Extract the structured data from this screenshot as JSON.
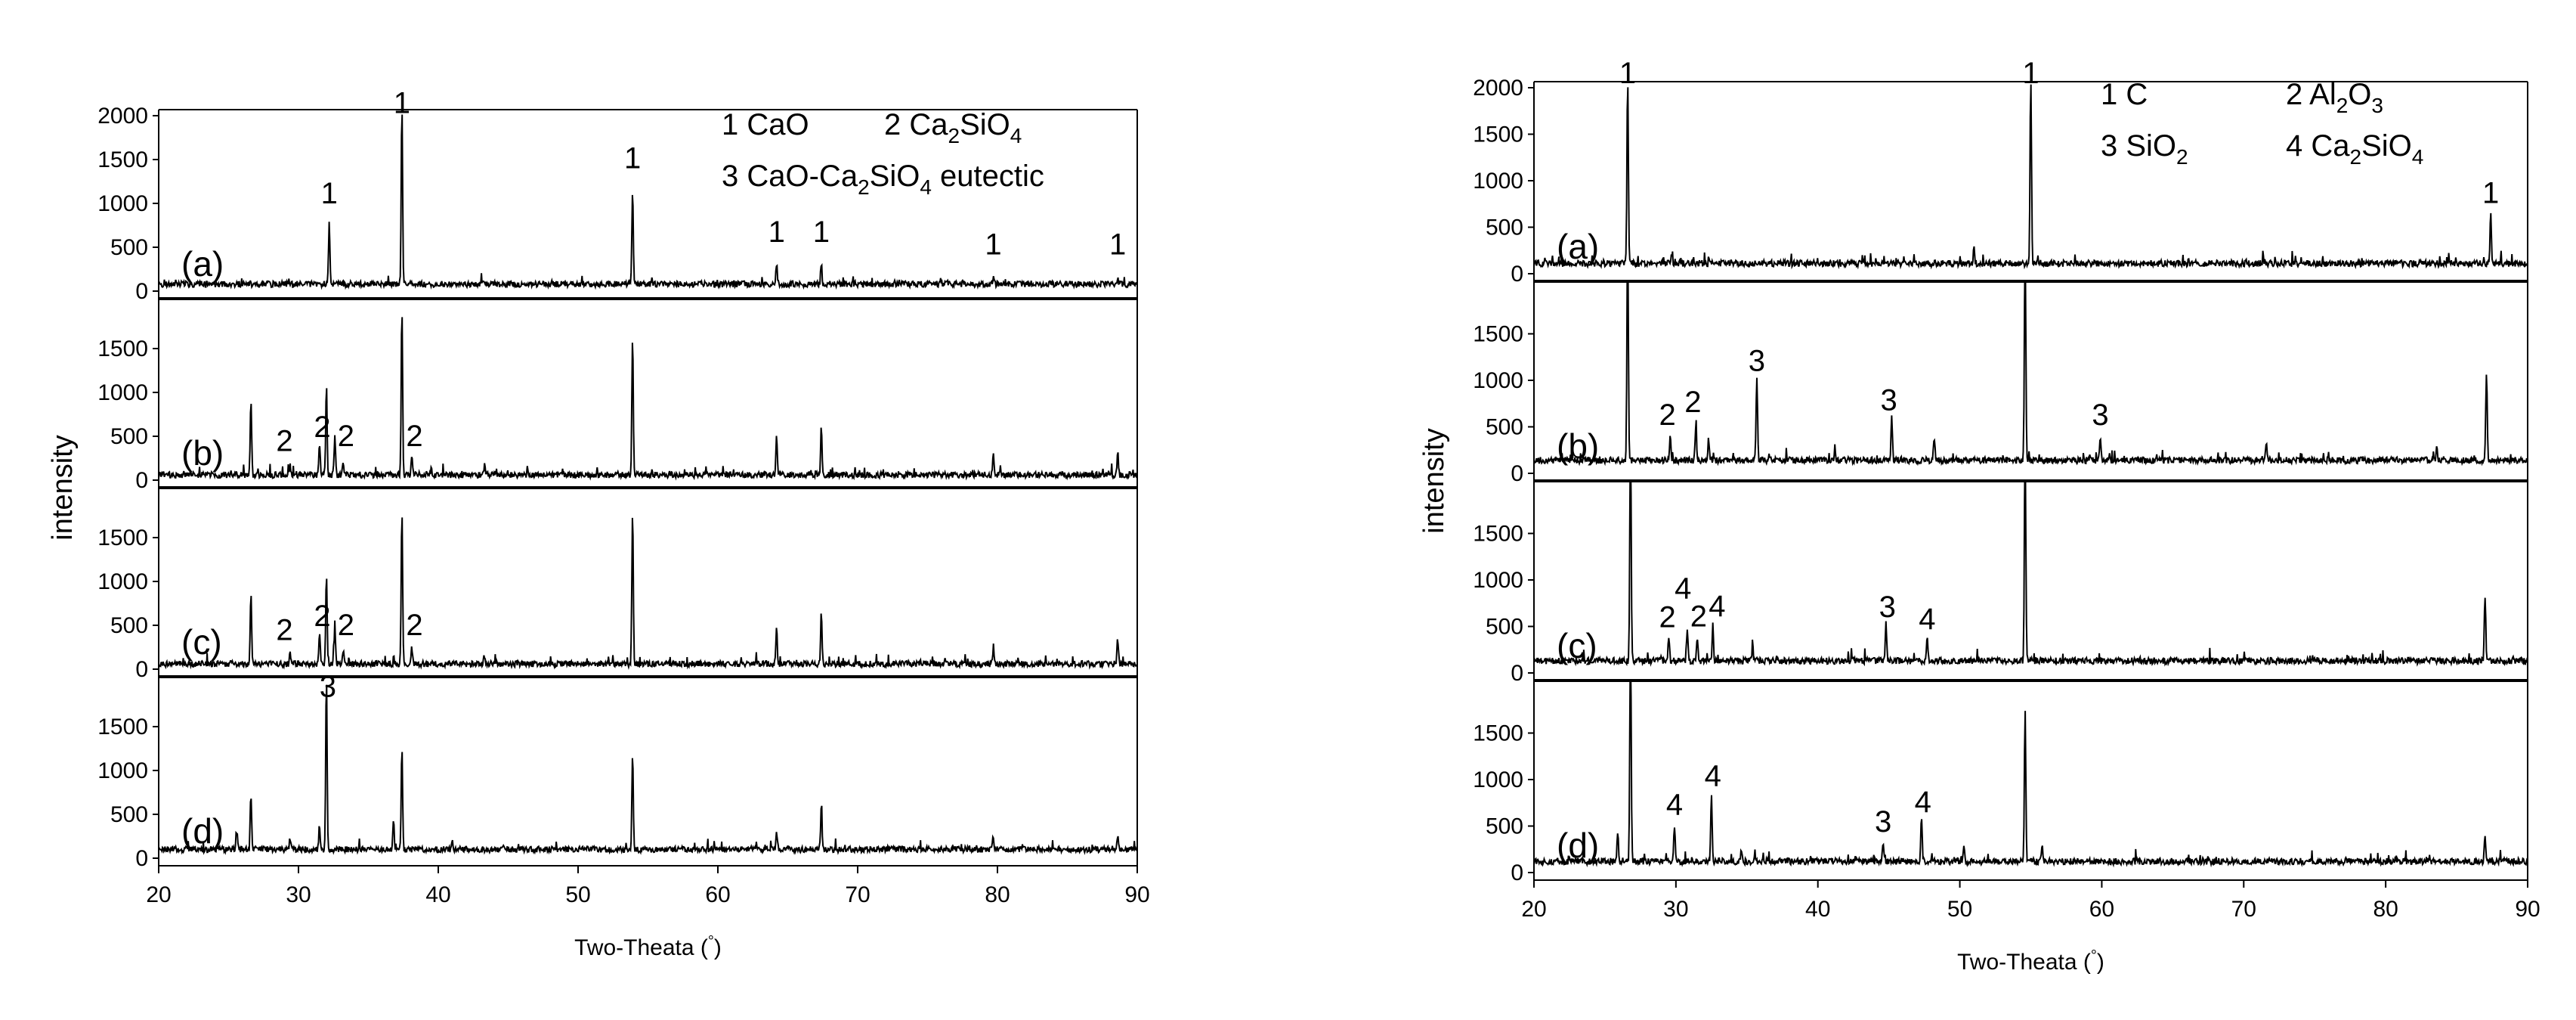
{
  "chart_data": [
    {
      "type": "line",
      "xlabel": "Two-Theata (°)",
      "ylabel": "intensity",
      "xlim": [
        20,
        90
      ],
      "x_ticks": [
        20,
        30,
        40,
        50,
        60,
        70,
        80,
        90
      ],
      "panel_ylim": [
        0,
        2000
      ],
      "y_ticks_top": [
        0,
        500,
        1000,
        1500,
        2000
      ],
      "y_ticks_lower": [
        0,
        500,
        1000,
        1500
      ],
      "legend": [
        {
          "num": "1",
          "label": "CaO"
        },
        {
          "num": "2",
          "label": "Ca2SiO4"
        },
        {
          "num": "3",
          "label": "CaO-Ca2SiO4 eutectic"
        }
      ],
      "panels": [
        {
          "tag": "(a)",
          "baseline": 80,
          "peaks": [
            [
              32.2,
              680
            ],
            [
              37.4,
              2000
            ],
            [
              53.9,
              1080
            ],
            [
              64.2,
              240
            ],
            [
              67.4,
              230
            ],
            [
              79.7,
              60
            ],
            [
              88.6,
              60
            ]
          ],
          "labels": [
            {
              "x": 32.2,
              "y": 1000,
              "t": "1"
            },
            {
              "x": 37.4,
              "y": 2030,
              "t": "1"
            },
            {
              "x": 53.9,
              "y": 1400,
              "t": "1"
            },
            {
              "x": 64.2,
              "y": 560,
              "t": "1"
            },
            {
              "x": 67.4,
              "y": 560,
              "t": "1"
            },
            {
              "x": 79.7,
              "y": 420,
              "t": "1"
            },
            {
              "x": 88.6,
              "y": 420,
              "t": "1"
            }
          ]
        },
        {
          "tag": "(b)",
          "baseline": 60,
          "peaks": [
            [
              26.6,
              850
            ],
            [
              29.4,
              110
            ],
            [
              31.5,
              380
            ],
            [
              32.0,
              1000
            ],
            [
              32.6,
              450
            ],
            [
              33.2,
              140
            ],
            [
              37.4,
              1900
            ],
            [
              38.1,
              200
            ],
            [
              39.5,
              90
            ],
            [
              43.3,
              100
            ],
            [
              53.9,
              1600
            ],
            [
              64.2,
              420
            ],
            [
              67.4,
              540
            ],
            [
              79.7,
              260
            ],
            [
              88.6,
              260
            ]
          ],
          "labels": [
            {
              "x": 29.0,
              "y": 330,
              "t": "2"
            },
            {
              "x": 31.7,
              "y": 490,
              "t": "2"
            },
            {
              "x": 33.4,
              "y": 390,
              "t": "2"
            },
            {
              "x": 38.3,
              "y": 390,
              "t": "2"
            }
          ]
        },
        {
          "tag": "(c)",
          "baseline": 60,
          "peaks": [
            [
              26.6,
              800
            ],
            [
              29.4,
              110
            ],
            [
              31.5,
              360
            ],
            [
              32.0,
              1000
            ],
            [
              32.6,
              420
            ],
            [
              33.2,
              140
            ],
            [
              37.4,
              1780
            ],
            [
              38.1,
              200
            ],
            [
              43.3,
              90
            ],
            [
              53.9,
              1750
            ],
            [
              64.2,
              420
            ],
            [
              67.4,
              600
            ],
            [
              79.7,
              130
            ],
            [
              88.6,
              280
            ]
          ],
          "labels": [
            {
              "x": 29.0,
              "y": 330,
              "t": "2"
            },
            {
              "x": 31.7,
              "y": 490,
              "t": "2"
            },
            {
              "x": 33.4,
              "y": 390,
              "t": "2"
            },
            {
              "x": 38.3,
              "y": 390,
              "t": "2"
            }
          ]
        },
        {
          "tag": "(d)",
          "baseline": 100,
          "peaks": [
            [
              25.6,
              220
            ],
            [
              26.6,
              640
            ],
            [
              29.4,
              130
            ],
            [
              31.5,
              280
            ],
            [
              32.0,
              1950
            ],
            [
              36.8,
              350
            ],
            [
              37.4,
              1180
            ],
            [
              41.0,
              120
            ],
            [
              53.9,
              1070
            ],
            [
              64.2,
              200
            ],
            [
              67.4,
              480
            ],
            [
              79.7,
              130
            ],
            [
              88.6,
              150
            ]
          ],
          "labels": [
            {
              "x": 32.1,
              "y": 1840,
              "t": "3"
            }
          ]
        }
      ]
    },
    {
      "type": "line",
      "xlabel": "Two-Theata (°)",
      "ylabel": "intensity",
      "xlim": [
        20,
        90
      ],
      "x_ticks": [
        20,
        30,
        40,
        50,
        60,
        70,
        80,
        90
      ],
      "panel_ylim": [
        0,
        2000
      ],
      "y_ticks_top": [
        0,
        500,
        1000,
        1500,
        2000
      ],
      "y_ticks_lower": [
        0,
        500,
        1000,
        1500
      ],
      "legend": [
        {
          "num": "1",
          "label": "C"
        },
        {
          "num": "2",
          "label": "Al2O3"
        },
        {
          "num": "3",
          "label": "SiO2"
        },
        {
          "num": "4",
          "label": "Ca2SiO4"
        }
      ],
      "panels": [
        {
          "tag": "(a)",
          "baseline": 110,
          "peaks": [
            [
              26.6,
              2000
            ],
            [
              29.7,
              100
            ],
            [
              51.0,
              160
            ],
            [
              55.0,
              2000
            ],
            [
              87.4,
              560
            ]
          ],
          "labels": [
            {
              "x": 26.6,
              "y": 2050,
              "t": "1"
            },
            {
              "x": 55.0,
              "y": 2050,
              "t": "1"
            },
            {
              "x": 87.4,
              "y": 760,
              "t": "1"
            }
          ]
        },
        {
          "tag": "(b)",
          "baseline": 140,
          "peaks": [
            [
              26.6,
              2400
            ],
            [
              29.6,
              280
            ],
            [
              31.4,
              380
            ],
            [
              32.3,
              240
            ],
            [
              35.7,
              900
            ],
            [
              41.2,
              150
            ],
            [
              45.2,
              480
            ],
            [
              48.2,
              260
            ],
            [
              54.6,
              2400
            ],
            [
              59.9,
              260
            ],
            [
              71.6,
              200
            ],
            [
              83.6,
              140
            ],
            [
              87.1,
              960
            ]
          ],
          "labels": [
            {
              "x": 29.4,
              "y": 520,
              "t": "2"
            },
            {
              "x": 31.2,
              "y": 660,
              "t": "2"
            },
            {
              "x": 35.7,
              "y": 1100,
              "t": "3"
            },
            {
              "x": 45.0,
              "y": 680,
              "t": "3"
            },
            {
              "x": 59.9,
              "y": 520,
              "t": "3"
            }
          ]
        },
        {
          "tag": "(c)",
          "baseline": 130,
          "peaks": [
            [
              26.8,
              2400
            ],
            [
              29.5,
              260
            ],
            [
              30.8,
              320
            ],
            [
              31.5,
              230
            ],
            [
              32.6,
              380
            ],
            [
              35.4,
              160
            ],
            [
              44.8,
              420
            ],
            [
              47.7,
              260
            ],
            [
              54.6,
              2400
            ],
            [
              87.0,
              700
            ]
          ],
          "labels": [
            {
              "x": 29.4,
              "y": 490,
              "t": "2"
            },
            {
              "x": 30.5,
              "y": 800,
              "t": "4"
            },
            {
              "x": 31.6,
              "y": 500,
              "t": "2"
            },
            {
              "x": 32.9,
              "y": 610,
              "t": "4"
            },
            {
              "x": 44.9,
              "y": 600,
              "t": "3"
            },
            {
              "x": 47.7,
              "y": 470,
              "t": "4"
            }
          ]
        },
        {
          "tag": "(d)",
          "baseline": 120,
          "peaks": [
            [
              25.9,
              300
            ],
            [
              26.8,
              2400
            ],
            [
              29.9,
              370
            ],
            [
              32.5,
              720
            ],
            [
              34.6,
              120
            ],
            [
              44.6,
              200
            ],
            [
              47.3,
              460
            ],
            [
              50.3,
              160
            ],
            [
              54.6,
              1600
            ],
            [
              55.8,
              200
            ],
            [
              87.0,
              260
            ]
          ],
          "labels": [
            {
              "x": 29.9,
              "y": 620,
              "t": "4"
            },
            {
              "x": 32.6,
              "y": 930,
              "t": "4"
            },
            {
              "x": 44.6,
              "y": 440,
              "t": "3"
            },
            {
              "x": 47.4,
              "y": 650,
              "t": "4"
            }
          ]
        }
      ]
    }
  ]
}
